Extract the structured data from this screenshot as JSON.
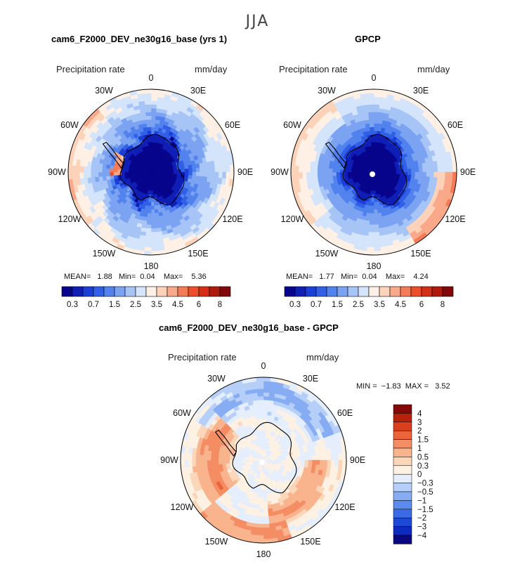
{
  "figure": {
    "title": "JJA",
    "colors": {
      "abs_palette": [
        "#08058c",
        "#0f1fb6",
        "#1b3fd6",
        "#3160e6",
        "#5182ee",
        "#7ba3f2",
        "#a7c4f6",
        "#d3e4fb",
        "#fff0e6",
        "#fcd2b9",
        "#f9a989",
        "#f57a56",
        "#ec4d2a",
        "#d42e16",
        "#ae1a0b",
        "#800808"
      ],
      "diff_palette": [
        "#0a0880",
        "#0d2cbf",
        "#1c4ad6",
        "#3a6ae6",
        "#5b8bee",
        "#86acf3",
        "#b6cff8",
        "#e4eefd",
        "#fdf1e4",
        "#fbd6b9",
        "#f9b48e",
        "#f48d63",
        "#ec6538",
        "#db401e",
        "#b8220b",
        "#850808"
      ]
    }
  },
  "panels": {
    "model": {
      "title": "cam6_F2000_DEV_ne30g16_base (yrs 1)",
      "variable": "Precipitation rate",
      "units": "mm/day",
      "lon_labels": [
        "0",
        "30E",
        "60E",
        "90E",
        "120E",
        "150E",
        "180",
        "150W",
        "120W",
        "90W",
        "60W",
        "30W"
      ],
      "stats": {
        "mean_label": "MEAN=",
        "mean": "1.88",
        "min_label": "Min=",
        "min": "0.04",
        "max_label": "Max=",
        "max": "5.36"
      },
      "colorbar_ticks": [
        "0.3",
        "0.7",
        "1.5",
        "2.5",
        "3.5",
        "4.5",
        "6",
        "8"
      ]
    },
    "obs": {
      "title": "GPCP",
      "variable": "Precipitation rate",
      "units": "mm/day",
      "lon_labels": [
        "0",
        "30E",
        "60E",
        "90E",
        "120E",
        "150E",
        "180",
        "150W",
        "120W",
        "90W",
        "60W",
        "30W"
      ],
      "stats": {
        "mean_label": "MEAN=",
        "mean": "1.77",
        "min_label": "Min=",
        "min": "0.04",
        "max_label": "Max=",
        "max": "4.24"
      },
      "colorbar_ticks": [
        "0.3",
        "0.7",
        "1.5",
        "2.5",
        "3.5",
        "4.5",
        "6",
        "8"
      ]
    },
    "diff": {
      "title": "cam6_F2000_DEV_ne30g16_base - GPCP",
      "variable": "Precipitation rate",
      "units": "mm/day",
      "lon_labels": [
        "0",
        "30E",
        "60E",
        "90E",
        "120E",
        "150E",
        "180",
        "150W",
        "120W",
        "90W",
        "60W",
        "30W"
      ],
      "stats": {
        "min_label": "MIN =",
        "min": "−1.83",
        "max_label": "MAX =",
        "max": "3.52"
      },
      "colorbar_ticks": [
        "4",
        "3",
        "2",
        "1.5",
        "1",
        "0.5",
        "0.3",
        "0",
        "−0.3",
        "−0.5",
        "−1",
        "−1.5",
        "−2",
        "−3",
        "−4"
      ]
    }
  },
  "chart_data": [
    {
      "type": "heatmap",
      "projection": "south polar stereographic",
      "title": "cam6_F2000_DEV_ne30g16_base (yrs 1)",
      "season": "JJA",
      "variable": "Precipitation rate",
      "units": "mm/day",
      "mean": 1.88,
      "min": 0.04,
      "max": 5.36,
      "contour_levels": [
        0.2,
        0.3,
        0.5,
        0.7,
        1,
        1.5,
        2,
        2.5,
        3,
        3.5,
        4,
        4.5,
        5,
        6,
        7,
        8
      ],
      "radial_profile": [
        0.1,
        0.2,
        0.8,
        1.5,
        2.2,
        2.6,
        2.3
      ],
      "colorbar_ticks": [
        0.3,
        0.7,
        1.5,
        2.5,
        3.5,
        4.5,
        6,
        8
      ]
    },
    {
      "type": "heatmap",
      "projection": "south polar stereographic",
      "title": "GPCP",
      "season": "JJA",
      "variable": "Precipitation rate",
      "units": "mm/day",
      "mean": 1.77,
      "min": 0.04,
      "max": 4.24,
      "contour_levels": [
        0.2,
        0.3,
        0.5,
        0.7,
        1,
        1.5,
        2,
        2.5,
        3,
        3.5,
        4,
        4.5,
        5,
        6,
        7,
        8
      ],
      "radial_profile": [
        0.1,
        0.2,
        0.6,
        1.2,
        1.8,
        2.3,
        2.6
      ],
      "colorbar_ticks": [
        0.3,
        0.7,
        1.5,
        2.5,
        3.5,
        4.5,
        6,
        8
      ]
    },
    {
      "type": "heatmap",
      "projection": "south polar stereographic",
      "title": "cam6_F2000_DEV_ne30g16_base - GPCP",
      "season": "JJA",
      "variable": "Precipitation rate",
      "units": "mm/day",
      "min": -1.83,
      "max": 3.52,
      "contour_levels": [
        -4,
        -3,
        -2,
        -1.5,
        -1,
        -0.5,
        -0.3,
        0,
        0.3,
        0.5,
        1,
        1.5,
        2,
        3,
        4
      ],
      "colorbar_ticks": [
        4,
        3,
        2,
        1.5,
        1,
        0.5,
        0.3,
        0,
        -0.3,
        -0.5,
        -1,
        -1.5,
        -2,
        -3,
        -4
      ]
    }
  ]
}
